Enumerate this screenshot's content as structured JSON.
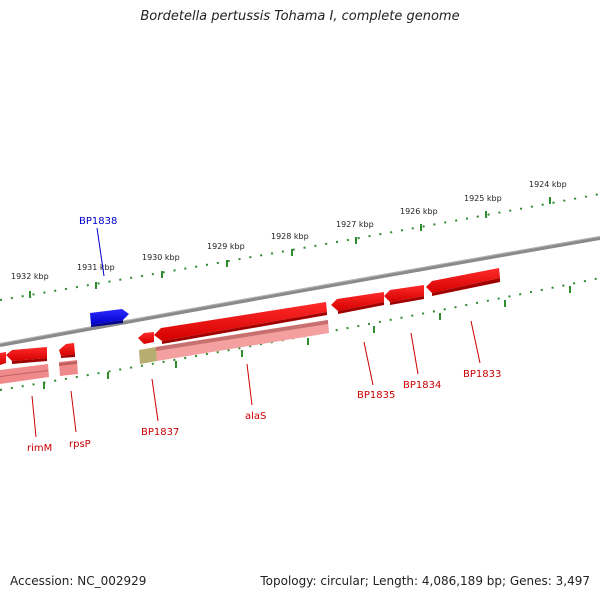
{
  "title": "Bordetella pertussis Tohama I, complete genome",
  "footer": {
    "accession": "Accession: NC_002929",
    "summary": "Topology: circular; Length: 4,086,189 bp; Genes: 3,497"
  },
  "scale_labels": [
    "1932 kbp",
    "1931 kbp",
    "1930 kbp",
    "1929 kbp",
    "1928 kbp",
    "1927 kbp",
    "1926 kbp",
    "1925 kbp",
    "1924 kbp"
  ],
  "gene_labels": {
    "BP1838": "BP1838",
    "rimM": "rimM",
    "rpsP": "rpsP",
    "BP1837": "BP1837",
    "alaS": "alaS",
    "BP1835": "BP1835",
    "BP1834": "BP1834",
    "BP1833": "BP1833"
  },
  "colors": {
    "forward_gene": "#0000ee",
    "reverse_gene": "#ee0000",
    "reverse_feature_shadow": "#f08080",
    "backbone": "#808080",
    "tick": "#2e8b2e",
    "olive_feature": "#b5a96a"
  }
}
